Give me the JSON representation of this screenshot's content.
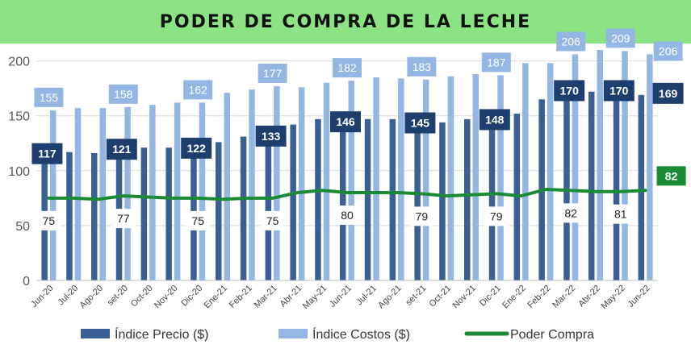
{
  "title": "PODER DE COMPRA DE LA LECHE",
  "chart_data": {
    "type": "bar",
    "categories": [
      "Jun-20",
      "Jul-20",
      "Ago-20",
      "set-20",
      "Oct-20",
      "Nov-20",
      "Dic-20",
      "Ene-21",
      "Feb-21",
      "Mar-21",
      "Abr-21",
      "May-21",
      "Jun-21",
      "Jul-21",
      "Ago-21",
      "set-21",
      "Oct-21",
      "Nov-21",
      "Dic-21",
      "Ene-22",
      "Feb-22",
      "Mar-22",
      "Abr-22",
      "May-22",
      "Jun-22"
    ],
    "ylim": [
      0,
      210
    ],
    "yticks": [
      0,
      50,
      100,
      150,
      200
    ],
    "grid": true,
    "legend": "bottom",
    "series": [
      {
        "name": "Índice Precio ($)",
        "type": "bar",
        "color": "#3a5f94",
        "values": [
          117,
          117,
          116,
          121,
          121,
          121,
          122,
          126,
          131,
          133,
          142,
          147,
          146,
          147,
          147,
          145,
          144,
          147,
          148,
          152,
          165,
          170,
          172,
          170,
          169
        ],
        "labels": {
          "0": "117",
          "3": "121",
          "6": "122",
          "9": "133",
          "12": "146",
          "15": "145",
          "18": "148",
          "21": "170",
          "23": "170",
          "24": "169"
        }
      },
      {
        "name": "Índice Costos ($)",
        "type": "bar",
        "color": "#94b6e3",
        "values": [
          155,
          157,
          157,
          158,
          160,
          162,
          162,
          171,
          174,
          177,
          176,
          180,
          182,
          185,
          184,
          183,
          186,
          188,
          187,
          198,
          198,
          206,
          210,
          209,
          206
        ],
        "labels": {
          "0": "155",
          "3": "158",
          "6": "162",
          "9": "177",
          "12": "182",
          "15": "183",
          "18": "187",
          "21": "206",
          "23": "209",
          "24": "206"
        }
      },
      {
        "name": "Poder Compra",
        "type": "line",
        "color": "#1a8a34",
        "values": [
          75,
          75,
          74,
          77,
          76,
          75,
          75,
          74,
          75,
          75,
          80,
          82,
          80,
          80,
          80,
          79,
          77,
          78,
          79,
          77,
          83,
          82,
          81,
          81,
          82
        ],
        "labels": {
          "0": "75",
          "3": "77",
          "6": "75",
          "9": "75",
          "12": "80",
          "15": "79",
          "18": "79",
          "21": "82",
          "23": "81",
          "24": "82"
        }
      }
    ]
  }
}
